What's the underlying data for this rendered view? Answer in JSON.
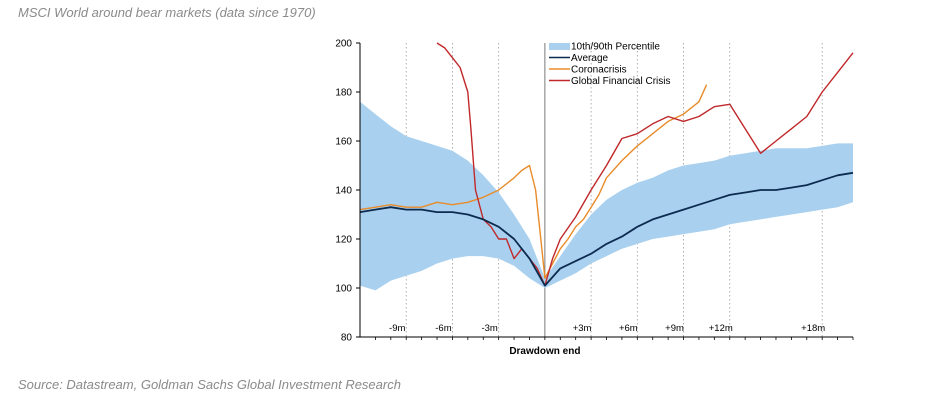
{
  "header": {
    "title": "MSCI World around bear markets (data since 1970)"
  },
  "footer": {
    "source": "Source: Datastream, Goldman Sachs Global Investment Research"
  },
  "chart_data": {
    "type": "line",
    "title": "",
    "xlabel": "Drawdown end",
    "ylabel": "",
    "ylim": [
      80,
      200
    ],
    "xlim": [
      -12,
      20
    ],
    "y_ticks": [
      80,
      100,
      120,
      140,
      160,
      180,
      200
    ],
    "x_marker_labels": [
      {
        "x": -9,
        "label": "-9m"
      },
      {
        "x": -6,
        "label": "-6m"
      },
      {
        "x": -3,
        "label": "-3m"
      },
      {
        "x": 3,
        "label": "+3m"
      },
      {
        "x": 6,
        "label": "+6m"
      },
      {
        "x": 9,
        "label": "+9m"
      },
      {
        "x": 12,
        "label": "+12m"
      },
      {
        "x": 18,
        "label": "+18m"
      }
    ],
    "legend_position": "top",
    "colors": {
      "band": "#a9d1ef",
      "average": "#0d2b4e",
      "coronacrisis": "#e88b2a",
      "gfc": "#c0282a"
    },
    "band": {
      "name": "10th/90th Percentile",
      "x": [
        -12,
        -11,
        -10,
        -9,
        -8,
        -7,
        -6,
        -5,
        -4,
        -3,
        -2,
        -1,
        0,
        1,
        2,
        3,
        4,
        5,
        6,
        7,
        8,
        9,
        10,
        11,
        12,
        13,
        14,
        15,
        16,
        17,
        18,
        19,
        20
      ],
      "lower": [
        101,
        99,
        103,
        105,
        107,
        110,
        112,
        113,
        113,
        112,
        109,
        104,
        100,
        103,
        106,
        110,
        113,
        116,
        118,
        120,
        121,
        122,
        123,
        124,
        126,
        127,
        128,
        129,
        130,
        131,
        132,
        133,
        135
      ],
      "upper": [
        176,
        171,
        166,
        162,
        160,
        158,
        156,
        152,
        146,
        139,
        130,
        120,
        104,
        113,
        122,
        130,
        136,
        140,
        143,
        145,
        148,
        150,
        151,
        152,
        154,
        155,
        156,
        157,
        157,
        157,
        158,
        159,
        159
      ]
    },
    "series": [
      {
        "name": "Average",
        "x": [
          -12,
          -11,
          -10,
          -9,
          -8,
          -7,
          -6,
          -5,
          -4,
          -3,
          -2,
          -1,
          0,
          1,
          2,
          3,
          4,
          5,
          6,
          7,
          8,
          9,
          10,
          11,
          12,
          13,
          14,
          15,
          16,
          17,
          18,
          19,
          20
        ],
        "values": [
          131,
          132,
          133,
          132,
          132,
          131,
          131,
          130,
          128,
          125,
          120,
          112,
          101,
          108,
          111,
          114,
          118,
          121,
          125,
          128,
          130,
          132,
          134,
          136,
          138,
          139,
          140,
          140,
          141,
          142,
          144,
          146,
          147
        ]
      },
      {
        "name": "Coronacrisis",
        "x": [
          -12,
          -11,
          -10,
          -9,
          -8,
          -7,
          -6,
          -5,
          -4,
          -3,
          -2,
          -1.5,
          -1,
          -0.6,
          -0.3,
          0,
          0.5,
          1,
          1.5,
          2,
          2.5,
          3,
          3.5,
          4,
          5,
          6,
          7,
          8,
          9,
          10,
          10.5
        ],
        "values": [
          132,
          133,
          134,
          133,
          133,
          135,
          134,
          135,
          137,
          140,
          145,
          148,
          150,
          140,
          122,
          104,
          110,
          116,
          120,
          125,
          128,
          133,
          138,
          145,
          152,
          158,
          163,
          168,
          171,
          176,
          183
        ]
      },
      {
        "name": "Global Financial Crisis",
        "x": [
          -7,
          -6.5,
          -6,
          -5.5,
          -5,
          -4.8,
          -4.5,
          -4,
          -3.5,
          -3,
          -2.5,
          -2,
          -1.5,
          -1,
          -0.5,
          0,
          0.5,
          1,
          2,
          3,
          4,
          5,
          6,
          7,
          8,
          9,
          10,
          11,
          12,
          13,
          14,
          15,
          16,
          17,
          18,
          19,
          20
        ],
        "values": [
          200,
          198,
          194,
          190,
          180,
          165,
          140,
          128,
          125,
          120,
          120,
          112,
          116,
          112,
          108,
          101,
          112,
          120,
          129,
          140,
          150,
          161,
          163,
          167,
          170,
          168,
          170,
          174,
          175,
          165,
          155,
          160,
          165,
          170,
          180,
          188,
          196
        ]
      }
    ]
  }
}
